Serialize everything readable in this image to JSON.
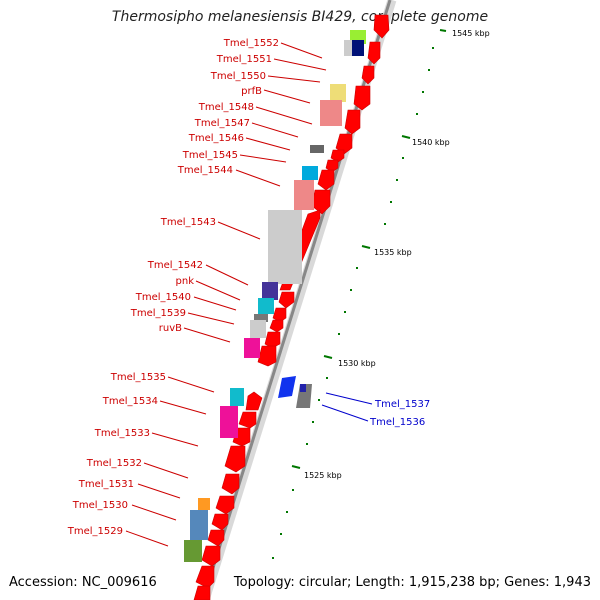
{
  "title": "Thermosipho melanesiensis BI429, complete genome",
  "accession_text": "Accession: NC_009616",
  "topology_text": "Topology: circular; Length: 1,915,238 bp; Genes: 1,943",
  "colors": {
    "label_forward": "#cc0000",
    "label_reverse": "#0000cc",
    "strand_forward": "#ff0000",
    "backbone": "#999999",
    "tick": "#008800"
  },
  "scale_labels": [
    "1545 kbp",
    "1540 kbp",
    "1535 kbp",
    "1530 kbp",
    "1525 kbp"
  ],
  "gene_labels_left": [
    "Tmel_1552",
    "Tmel_1551",
    "Tmel_1550",
    "prfB",
    "Tmel_1548",
    "Tmel_1547",
    "Tmel_1546",
    "Tmel_1545",
    "Tmel_1544",
    "Tmel_1543",
    "Tmel_1542",
    "pnk",
    "Tmel_1540",
    "Tmel_1539",
    "ruvB",
    "Tmel_1535",
    "Tmel_1534",
    "Tmel_1533",
    "Tmel_1532",
    "Tmel_1531",
    "Tmel_1530",
    "Tmel_1529"
  ],
  "gene_labels_right": [
    "Tmel_1537",
    "Tmel_1536"
  ]
}
